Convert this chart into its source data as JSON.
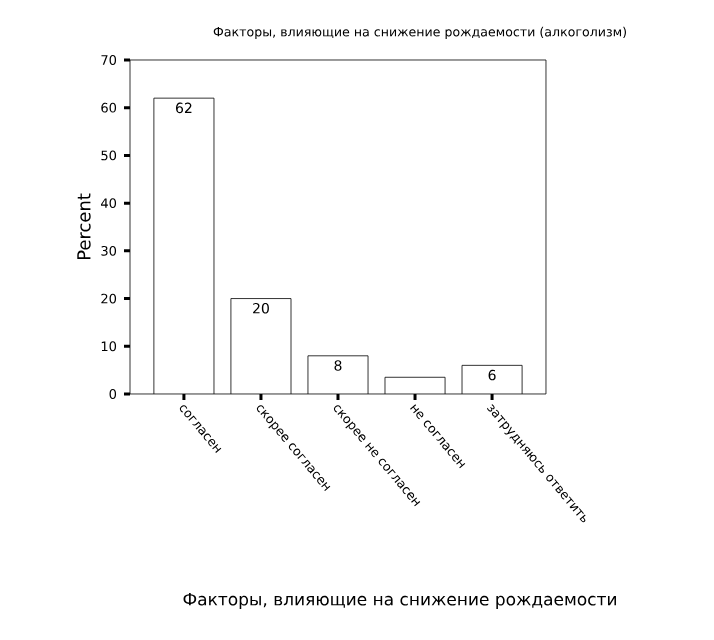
{
  "chart_data": {
    "type": "bar",
    "title": "Факторы, влияющие на снижение рождаемости (алкоголизм)",
    "xlabel": "Факторы, влияющие на снижение рождаемости",
    "ylabel": "Percent",
    "categories": [
      "согласен",
      "скорее согласен",
      "скорее не согласен",
      "не согласен",
      "затрудняюсь ответить"
    ],
    "values": [
      62,
      20,
      8,
      3.5,
      6
    ],
    "value_labels": [
      "62",
      "20",
      "8",
      null,
      "6"
    ],
    "color": "#ffffff",
    "ylim": [
      0,
      70
    ],
    "yticks": [
      0,
      10,
      20,
      30,
      40,
      50,
      60,
      70
    ],
    "grid": false
  }
}
